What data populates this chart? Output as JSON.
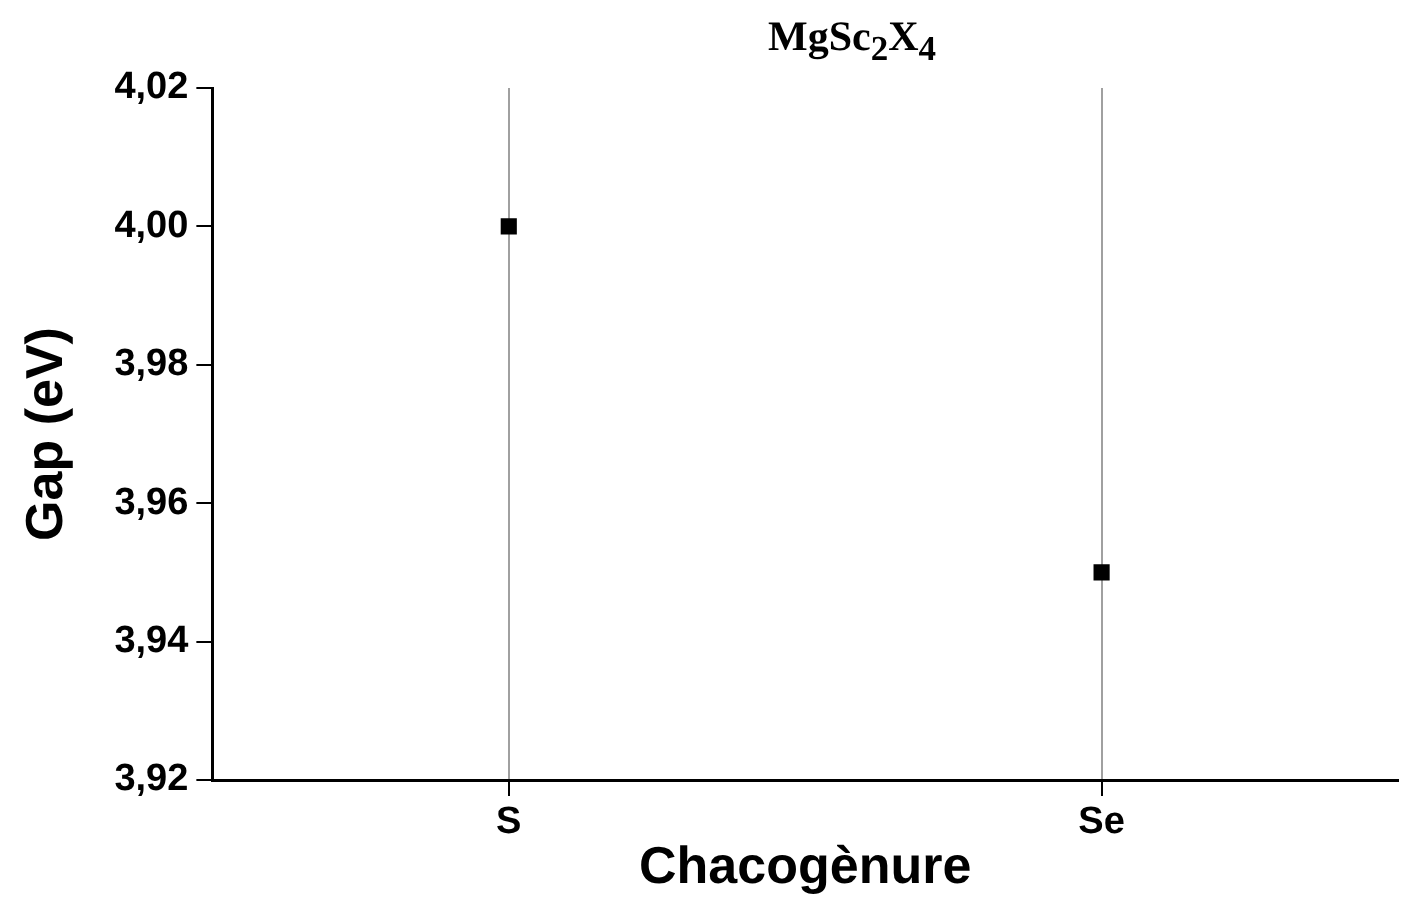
{
  "chart_data": {
    "type": "scatter",
    "title": "MgSc$_{2}$X$_{4}$",
    "xlabel": "Chacogènure",
    "ylabel": "Gap (eV)",
    "categories": [
      "S",
      "Se"
    ],
    "series": [
      {
        "color": "#000000",
        "values": [
          4.0,
          3.95
        ]
      }
    ],
    "ylim": [
      3.92,
      4.02
    ],
    "yticks": [
      {
        "value": 3.92,
        "label": "3,92"
      },
      {
        "value": 3.94,
        "label": "3,94"
      },
      {
        "value": 3.96,
        "label": "3,96"
      },
      {
        "value": 3.98,
        "label": "3,98"
      },
      {
        "value": 4.0,
        "label": "4,00"
      },
      {
        "value": 4.02,
        "label": "4,02"
      }
    ],
    "grid": "x",
    "legend": false,
    "marker": "square"
  }
}
